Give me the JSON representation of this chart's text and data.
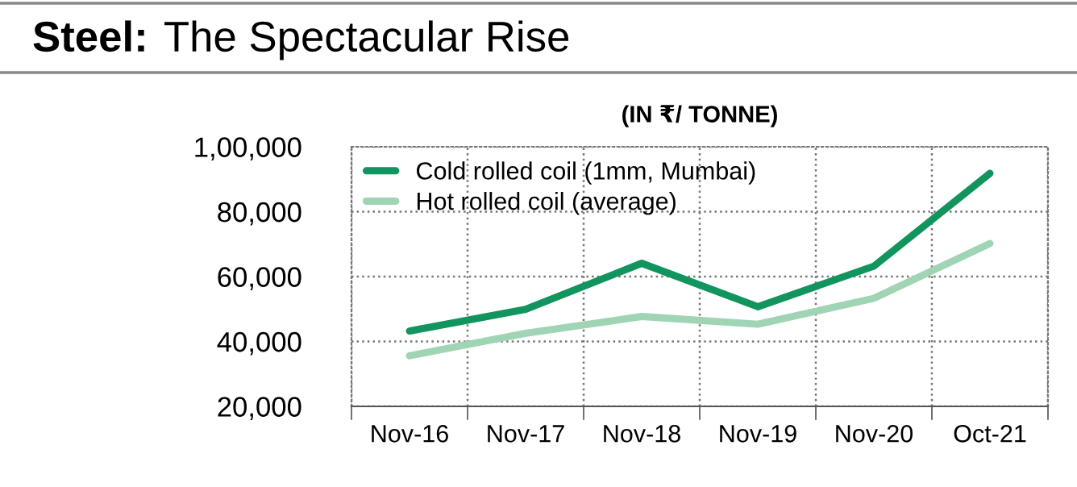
{
  "chart_data": {
    "type": "line",
    "title": "Steel: The Spectacular Rise",
    "subtitle": "(IN ₹/ TONNE)",
    "categories": [
      "Nov-16",
      "Nov-17",
      "Nov-18",
      "Nov-19",
      "Nov-20",
      "Oct-21"
    ],
    "series": [
      {
        "name": "Cold rolled coil (1mm, Mumbai)",
        "color": "#12945f",
        "values": [
          43200,
          49900,
          64100,
          50700,
          63200,
          91800
        ]
      },
      {
        "name": "Hot rolled coil (average)",
        "color": "#9fd4b4",
        "values": [
          35600,
          42500,
          47700,
          45300,
          53300,
          70200
        ]
      }
    ],
    "ylim": [
      20000,
      100000
    ],
    "yticks": [
      {
        "value": 20000,
        "label": "20,000"
      },
      {
        "value": 40000,
        "label": "40,000"
      },
      {
        "value": 60000,
        "label": "60,000"
      },
      {
        "value": 80000,
        "label": "80,000"
      },
      {
        "value": 100000,
        "label": "1,00,000"
      }
    ],
    "grid": true,
    "legend": "top left",
    "marker": "none",
    "line_style": "solid"
  }
}
